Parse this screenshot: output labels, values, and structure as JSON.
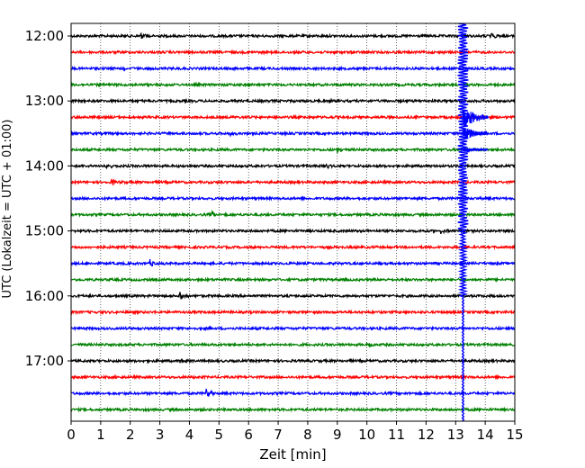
{
  "chart_data": {
    "type": "line",
    "chart_kind": "helicorder seismogram",
    "xlabel": "Zeit  [min]",
    "ylabel": "UTC (Lokalzeit = UTC + 01:00)",
    "xlim": [
      0,
      15
    ],
    "x_ticks": [
      "0",
      "1",
      "2",
      "3",
      "4",
      "5",
      "6",
      "7",
      "8",
      "9",
      "10",
      "11",
      "12",
      "13",
      "14",
      "15"
    ],
    "y_tick_labels": [
      "12:00",
      "13:00",
      "14:00",
      "15:00",
      "16:00",
      "17:00"
    ],
    "grid": "vertical dotted lines at each minute",
    "trace_colors_cycle": [
      "#000000",
      "#ff0000",
      "#0000ff",
      "#008000"
    ],
    "traces": [
      {
        "start": "12:00",
        "events": [
          {
            "t": 2.4,
            "amp": 0.6
          },
          {
            "t": 14.2,
            "amp": 0.8
          }
        ]
      },
      {
        "start": "12:15",
        "events": []
      },
      {
        "start": "12:30",
        "events": [
          {
            "t": 1.8,
            "amp": 0.5
          }
        ]
      },
      {
        "start": "12:45",
        "events": []
      },
      {
        "start": "13:00",
        "events": []
      },
      {
        "start": "13:15",
        "events": []
      },
      {
        "start": "13:30",
        "events": [
          {
            "t": 5.4,
            "amp": 0.5
          }
        ]
      },
      {
        "start": "13:45",
        "events": [
          {
            "t": 9.0,
            "amp": 0.6
          }
        ]
      },
      {
        "start": "14:00",
        "events": [
          {
            "t": 1.2,
            "amp": 0.6
          },
          {
            "t": 8.6,
            "amp": 0.6
          }
        ]
      },
      {
        "start": "14:15",
        "events": [
          {
            "t": 1.4,
            "amp": 0.6
          }
        ]
      },
      {
        "start": "14:30",
        "events": []
      },
      {
        "start": "14:45",
        "events": [
          {
            "t": 4.8,
            "amp": 0.6
          }
        ]
      },
      {
        "start": "15:00",
        "events": [
          {
            "t": 12.5,
            "amp": 0.5
          }
        ]
      },
      {
        "start": "15:15",
        "events": []
      },
      {
        "start": "15:30",
        "events": [
          {
            "t": 2.7,
            "amp": 0.8
          }
        ]
      },
      {
        "start": "15:45",
        "events": []
      },
      {
        "start": "16:00",
        "events": [
          {
            "t": 3.7,
            "amp": 0.9
          }
        ]
      },
      {
        "start": "16:15",
        "events": []
      },
      {
        "start": "16:30",
        "events": []
      },
      {
        "start": "16:45",
        "events": [
          {
            "t": 10.1,
            "amp": 0.5
          }
        ]
      },
      {
        "start": "17:00",
        "events": [
          {
            "t": 3.7,
            "amp": 0.5
          }
        ]
      },
      {
        "start": "17:15",
        "events": []
      },
      {
        "start": "17:30",
        "events": [
          {
            "t": 4.6,
            "amp": 1.0
          }
        ]
      },
      {
        "start": "17:45",
        "events": []
      }
    ],
    "major_event": {
      "trace_start": "13:00",
      "time_min": 13.25,
      "color": "#0000ff",
      "description": "large earthquake signal saturating many rows"
    }
  }
}
